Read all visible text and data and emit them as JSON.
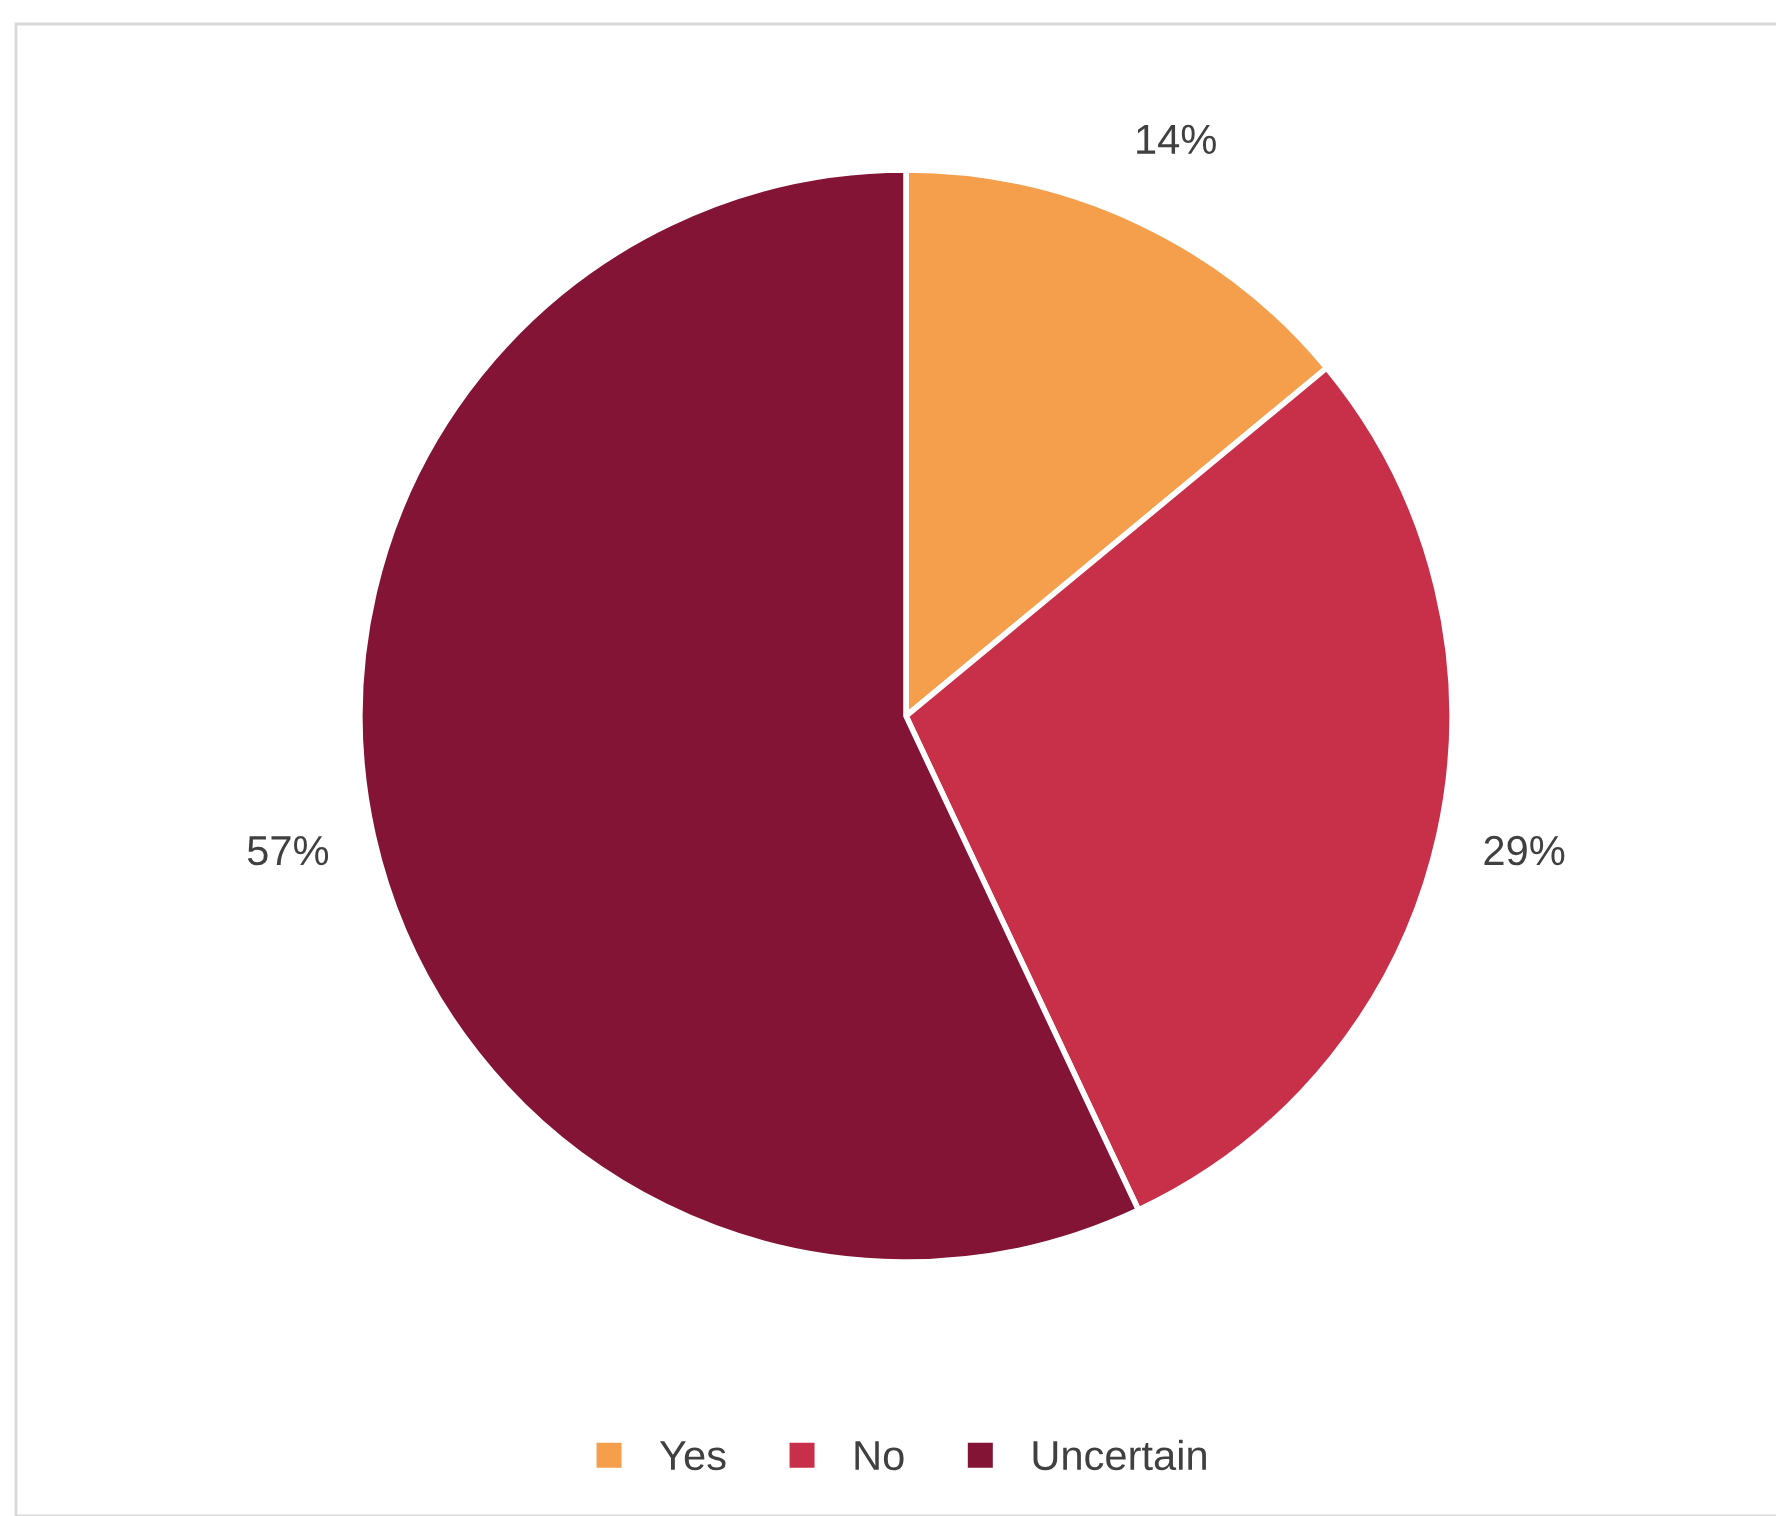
{
  "chart_data": {
    "type": "pie",
    "categories": [
      "Yes",
      "No",
      "Uncertain"
    ],
    "values": [
      14,
      29,
      57
    ],
    "colors": [
      "#f59e4c",
      "#c8304a",
      "#831436"
    ],
    "data_labels": true,
    "value_labels": [
      "14%",
      "29%",
      "57%"
    ],
    "legend": "bottom"
  }
}
